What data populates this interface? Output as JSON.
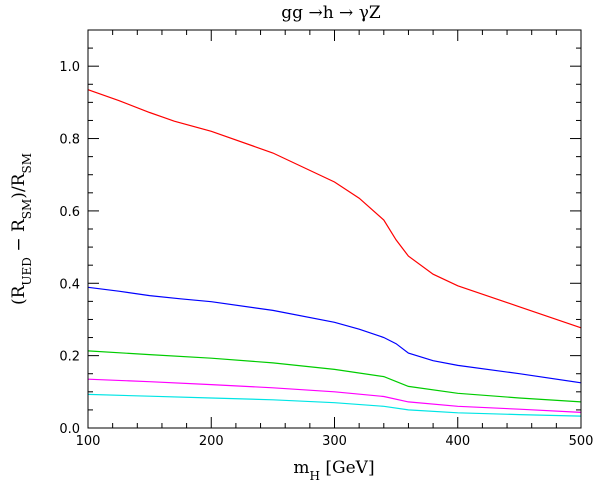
{
  "chart_data": {
    "type": "line",
    "title": "gg →h → γZ",
    "xlabel": "m_H [GeV]",
    "ylabel": "(R_UED − R_SM)/R_SM",
    "xlim": [
      100,
      500
    ],
    "ylim": [
      0,
      1.1
    ],
    "grid": false,
    "legend": "none",
    "x_ticks": [
      "100",
      "200",
      "300",
      "400",
      "500"
    ],
    "y_ticks": [
      "0.0",
      "0.2",
      "0.4",
      "0.6",
      "0.8",
      "1.0"
    ],
    "series": [
      {
        "color": "#ff0000",
        "x": [
          100,
          125,
          150,
          160,
          170,
          200,
          250,
          300,
          320,
          340,
          350,
          360,
          380,
          400,
          450,
          500
        ],
        "y": [
          0.935,
          0.905,
          0.872,
          0.86,
          0.848,
          0.82,
          0.76,
          0.68,
          0.635,
          0.575,
          0.52,
          0.475,
          0.425,
          0.393,
          0.335,
          0.277
        ]
      },
      {
        "color": "#0000ff",
        "x": [
          100,
          125,
          150,
          175,
          200,
          250,
          300,
          320,
          340,
          350,
          360,
          380,
          400,
          450,
          500
        ],
        "y": [
          0.389,
          0.378,
          0.366,
          0.357,
          0.349,
          0.325,
          0.292,
          0.273,
          0.25,
          0.233,
          0.207,
          0.186,
          0.173,
          0.15,
          0.125
        ]
      },
      {
        "color": "#00cc00",
        "x": [
          100,
          150,
          200,
          250,
          300,
          340,
          360,
          400,
          450,
          500
        ],
        "y": [
          0.213,
          0.203,
          0.193,
          0.18,
          0.162,
          0.142,
          0.115,
          0.096,
          0.083,
          0.072
        ]
      },
      {
        "color": "#ff00ff",
        "x": [
          100,
          150,
          200,
          250,
          300,
          340,
          360,
          400,
          450,
          500
        ],
        "y": [
          0.135,
          0.128,
          0.12,
          0.111,
          0.1,
          0.087,
          0.072,
          0.06,
          0.052,
          0.043
        ]
      },
      {
        "color": "#00e5e5",
        "x": [
          100,
          150,
          200,
          250,
          300,
          340,
          360,
          400,
          450,
          500
        ],
        "y": [
          0.093,
          0.088,
          0.083,
          0.078,
          0.07,
          0.06,
          0.05,
          0.042,
          0.037,
          0.033
        ]
      }
    ]
  }
}
